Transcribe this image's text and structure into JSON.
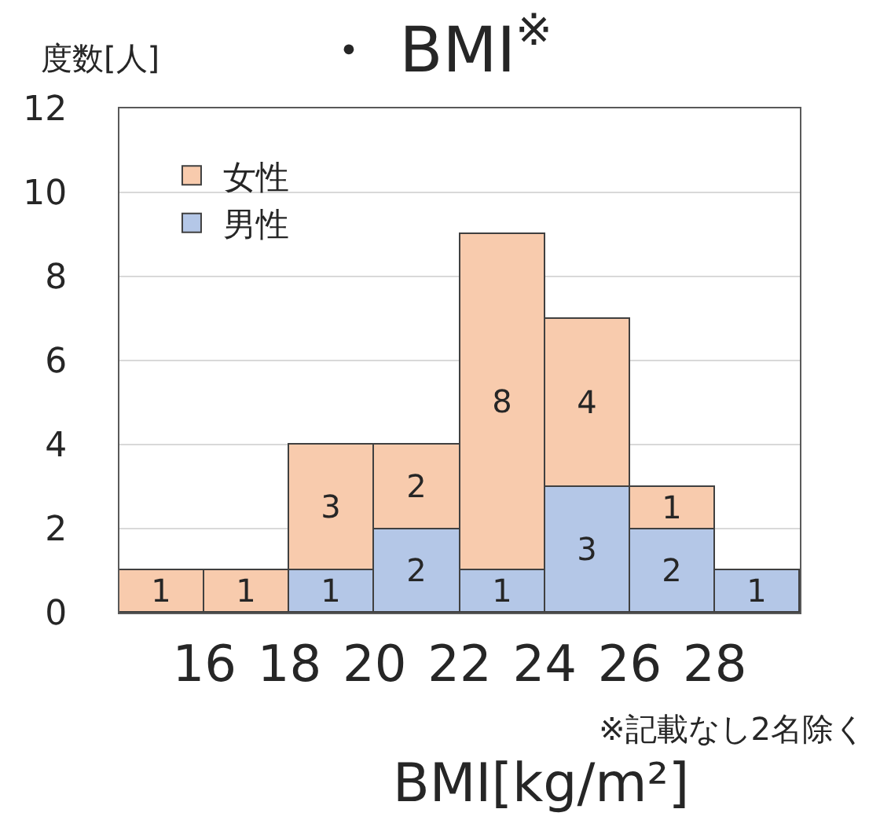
{
  "chart_data": {
    "type": "bar",
    "title": "・ BMI$^{※}$",
    "xlabel": "BMI[kg/m²]",
    "ylabel": "度数[人]",
    "annotations": [
      "※記載なし2名除く"
    ],
    "x": [
      15,
      17,
      19,
      21,
      23,
      25,
      27,
      29
    ],
    "stacked": true,
    "series": [
      {
        "name": "男性",
        "color": "#b4c7e7",
        "values": [
          null,
          null,
          1,
          2,
          1,
          3,
          2,
          1
        ]
      },
      {
        "name": "女性",
        "color": "#f8cbad",
        "values": [
          1,
          1,
          3,
          2,
          8,
          4,
          1,
          null
        ]
      }
    ],
    "xlim": [
      14,
      30
    ],
    "xticks": [
      16,
      18,
      20,
      22,
      24,
      26,
      28
    ],
    "ylim": [
      0,
      12
    ],
    "yticks": [
      0,
      2,
      4,
      6,
      8,
      10,
      12
    ],
    "grid": "y",
    "legend": "top left",
    "data_labels": true
  }
}
